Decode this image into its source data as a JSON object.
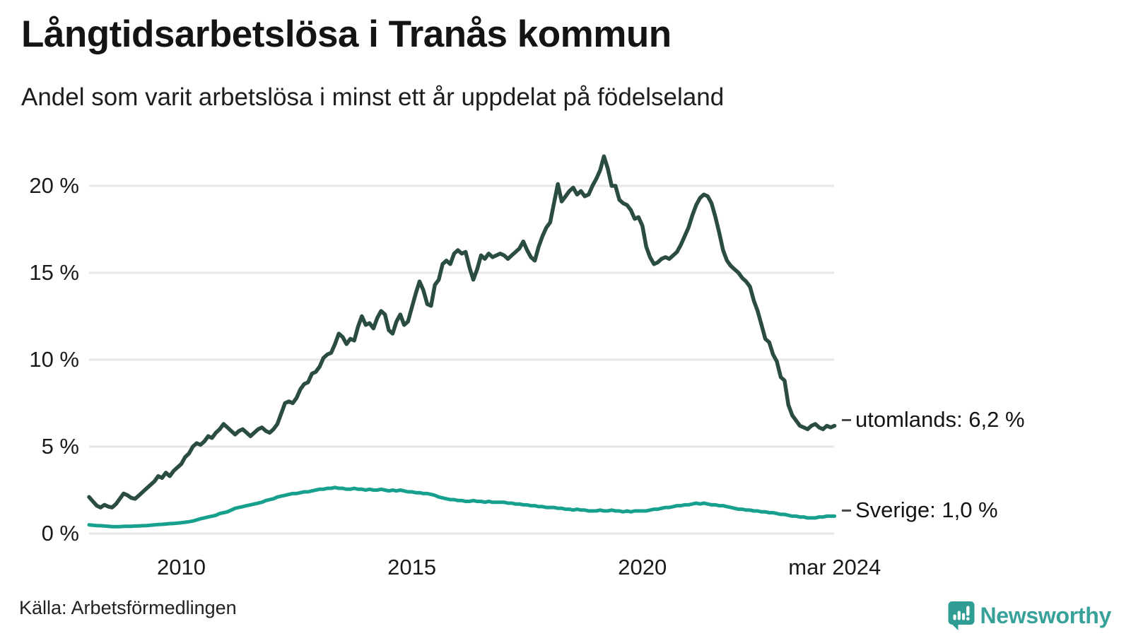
{
  "header": {
    "title": "Långtidsarbetslösa i Tranås kommun",
    "subtitle": "Andel som varit arbetslösa i minst ett år uppdelat på födelseland"
  },
  "footer": {
    "source": "Källa: Arbetsförmedlingen",
    "brand": "Newsworthy"
  },
  "colors": {
    "utomlands_line": "#2b4c42",
    "sverige_line": "#18a08e",
    "grid": "#e8e8ec",
    "text": "#1a1a1a",
    "label_dash": "#4a4a4a",
    "brand_teal": "#38a29a",
    "brand_icon": "#2f9d93"
  },
  "chart_data": {
    "type": "line",
    "title": "Långtidsarbetslösa i Tranås kommun",
    "subtitle": "Andel som varit arbetslösa i minst ett år uppdelat på födelseland",
    "xlabel": "",
    "ylabel": "",
    "grid": true,
    "legend_position": "end-of-line labels at right",
    "x_axis": {
      "range": [
        2008.0,
        2024.25
      ],
      "ticks": [
        {
          "value": 2010,
          "label": "2010"
        },
        {
          "value": 2015,
          "label": "2015"
        },
        {
          "value": 2020,
          "label": "2020"
        },
        {
          "value": 2024.17,
          "label": "mar 2024"
        }
      ]
    },
    "y_axis": {
      "range": [
        0,
        22.5
      ],
      "unit": "%",
      "ticks": [
        {
          "value": 0,
          "label": "0 %"
        },
        {
          "value": 5,
          "label": "5 %"
        },
        {
          "value": 10,
          "label": "10 %"
        },
        {
          "value": 15,
          "label": "15 %"
        },
        {
          "value": 20,
          "label": "20 %"
        }
      ]
    },
    "series": [
      {
        "name": "utomlands",
        "label": "utomlands: 6,2 %",
        "end_value": 6.2,
        "color": "#2b4c42",
        "stroke_width": 5.5,
        "start_year": 2008,
        "points_per_year": 12,
        "values": [
          2.1,
          1.85,
          1.6,
          1.5,
          1.65,
          1.55,
          1.5,
          1.7,
          2.0,
          2.3,
          2.2,
          2.05,
          2.0,
          2.2,
          2.4,
          2.6,
          2.8,
          3.0,
          3.3,
          3.2,
          3.5,
          3.3,
          3.6,
          3.8,
          4.0,
          4.4,
          4.6,
          5.0,
          5.2,
          5.1,
          5.3,
          5.6,
          5.5,
          5.8,
          6.0,
          6.3,
          6.1,
          5.9,
          5.7,
          5.9,
          6.0,
          5.8,
          5.6,
          5.8,
          6.0,
          6.1,
          5.9,
          5.8,
          6.0,
          6.3,
          6.9,
          7.5,
          7.6,
          7.5,
          7.8,
          8.3,
          8.6,
          8.7,
          9.2,
          9.3,
          9.6,
          10.1,
          10.3,
          10.4,
          10.9,
          11.5,
          11.3,
          10.9,
          11.2,
          11.1,
          11.9,
          12.5,
          12.0,
          12.1,
          11.8,
          12.4,
          12.8,
          12.6,
          11.7,
          11.5,
          12.2,
          12.6,
          12.0,
          12.2,
          13.0,
          13.8,
          14.5,
          14.0,
          13.2,
          13.1,
          14.3,
          14.6,
          15.5,
          15.7,
          15.5,
          16.1,
          16.3,
          16.1,
          16.2,
          15.3,
          14.6,
          15.2,
          16.0,
          15.8,
          16.1,
          15.9,
          16.0,
          16.1,
          16.0,
          15.8,
          16.0,
          16.2,
          16.4,
          16.8,
          16.3,
          15.9,
          15.7,
          16.5,
          17.1,
          17.6,
          17.9,
          19.0,
          20.1,
          19.1,
          19.4,
          19.7,
          19.9,
          19.5,
          19.7,
          19.4,
          19.5,
          20.0,
          20.4,
          20.9,
          21.7,
          21.0,
          20.0,
          20.0,
          19.2,
          19.0,
          18.9,
          18.6,
          18.1,
          18.2,
          17.7,
          16.5,
          15.9,
          15.5,
          15.6,
          15.8,
          15.9,
          15.8,
          16.0,
          16.2,
          16.6,
          17.1,
          17.6,
          18.3,
          18.9,
          19.3,
          19.5,
          19.4,
          19.0,
          18.2,
          17.3,
          16.3,
          15.7,
          15.4,
          15.2,
          15.0,
          14.7,
          14.5,
          14.2,
          13.4,
          12.8,
          12.0,
          11.2,
          11.0,
          10.3,
          9.9,
          9.0,
          8.8,
          7.4,
          6.8,
          6.5,
          6.2,
          6.1,
          6.0,
          6.2,
          6.3,
          6.1,
          6.0,
          6.2,
          6.1,
          6.2
        ]
      },
      {
        "name": "Sverige",
        "label": "Sverige: 1,0 %",
        "end_value": 1.0,
        "color": "#18a08e",
        "stroke_width": 5,
        "start_year": 2008,
        "points_per_year": 12,
        "values": [
          0.5,
          0.48,
          0.46,
          0.45,
          0.43,
          0.42,
          0.4,
          0.4,
          0.4,
          0.41,
          0.42,
          0.42,
          0.43,
          0.44,
          0.45,
          0.46,
          0.48,
          0.5,
          0.52,
          0.53,
          0.55,
          0.57,
          0.58,
          0.6,
          0.62,
          0.65,
          0.68,
          0.72,
          0.78,
          0.85,
          0.9,
          0.95,
          1.0,
          1.05,
          1.15,
          1.2,
          1.25,
          1.35,
          1.45,
          1.5,
          1.55,
          1.6,
          1.65,
          1.7,
          1.75,
          1.8,
          1.9,
          1.95,
          2.0,
          2.1,
          2.15,
          2.2,
          2.25,
          2.3,
          2.3,
          2.35,
          2.4,
          2.4,
          2.45,
          2.5,
          2.55,
          2.55,
          2.6,
          2.6,
          2.65,
          2.6,
          2.6,
          2.55,
          2.55,
          2.6,
          2.55,
          2.55,
          2.5,
          2.55,
          2.5,
          2.5,
          2.55,
          2.5,
          2.45,
          2.5,
          2.45,
          2.5,
          2.45,
          2.4,
          2.4,
          2.35,
          2.35,
          2.3,
          2.3,
          2.25,
          2.2,
          2.1,
          2.05,
          2.0,
          1.95,
          1.95,
          1.9,
          1.9,
          1.85,
          1.85,
          1.9,
          1.85,
          1.85,
          1.8,
          1.85,
          1.8,
          1.8,
          1.8,
          1.8,
          1.75,
          1.75,
          1.7,
          1.7,
          1.65,
          1.65,
          1.6,
          1.6,
          1.55,
          1.55,
          1.5,
          1.5,
          1.5,
          1.45,
          1.45,
          1.4,
          1.4,
          1.35,
          1.4,
          1.35,
          1.35,
          1.3,
          1.3,
          1.3,
          1.35,
          1.3,
          1.3,
          1.35,
          1.3,
          1.3,
          1.25,
          1.3,
          1.25,
          1.3,
          1.3,
          1.3,
          1.3,
          1.35,
          1.4,
          1.4,
          1.45,
          1.5,
          1.5,
          1.55,
          1.6,
          1.6,
          1.65,
          1.65,
          1.7,
          1.75,
          1.7,
          1.75,
          1.7,
          1.65,
          1.65,
          1.6,
          1.6,
          1.55,
          1.5,
          1.45,
          1.4,
          1.4,
          1.35,
          1.35,
          1.3,
          1.3,
          1.25,
          1.25,
          1.2,
          1.2,
          1.15,
          1.1,
          1.1,
          1.05,
          1.0,
          1.0,
          0.95,
          0.95,
          0.9,
          0.9,
          0.9,
          0.95,
          0.95,
          1.0,
          1.0,
          1.0
        ]
      }
    ]
  }
}
